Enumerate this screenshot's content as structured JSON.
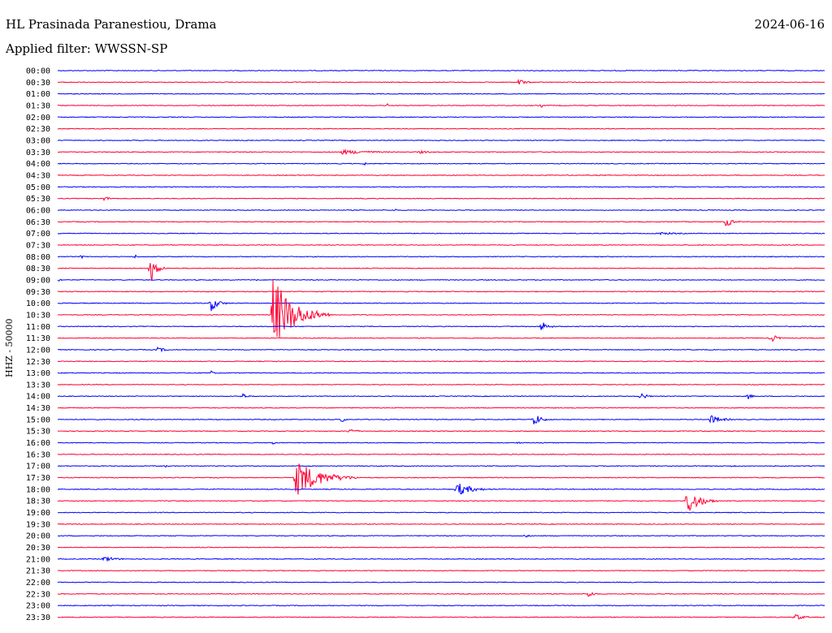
{
  "header": {
    "station": "HL Prasinada Paranestiou, Drama",
    "date": "2024-06-16",
    "filter": "Applied filter: WWSSN-SP"
  },
  "chart_data": {
    "type": "line",
    "title": "HL Prasinada Paranestiou, Drama",
    "ylabel": "HHZ - 50000",
    "colors": {
      "even": "#0000ff",
      "odd": "#ff0033"
    },
    "rows": [
      {
        "label": "00:00",
        "events": []
      },
      {
        "label": "00:30",
        "events": [
          [
            0.6,
            5,
            25
          ]
        ]
      },
      {
        "label": "01:00",
        "events": []
      },
      {
        "label": "01:30",
        "events": [
          [
            0.43,
            3,
            4
          ],
          [
            0.63,
            3,
            10
          ]
        ]
      },
      {
        "label": "02:00",
        "events": []
      },
      {
        "label": "02:30",
        "events": []
      },
      {
        "label": "03:00",
        "events": []
      },
      {
        "label": "03:30",
        "events": [
          [
            0.37,
            3,
            110
          ],
          [
            0.47,
            2,
            50
          ]
        ]
      },
      {
        "label": "04:00",
        "events": [
          [
            0.4,
            3,
            6
          ]
        ]
      },
      {
        "label": "04:30",
        "events": []
      },
      {
        "label": "05:00",
        "events": []
      },
      {
        "label": "05:30",
        "events": [
          [
            0.06,
            3,
            25
          ]
        ]
      },
      {
        "label": "06:00",
        "events": [
          [
            0.44,
            3,
            4
          ]
        ]
      },
      {
        "label": "06:30",
        "events": [
          [
            0.87,
            8,
            22
          ]
        ]
      },
      {
        "label": "07:00",
        "events": [
          [
            0.78,
            2,
            80
          ]
        ]
      },
      {
        "label": "07:30",
        "events": []
      },
      {
        "label": "08:00",
        "events": [
          [
            0.03,
            4,
            8
          ],
          [
            0.1,
            4,
            8
          ]
        ]
      },
      {
        "label": "08:30",
        "events": [
          [
            0.12,
            22,
            20
          ]
        ]
      },
      {
        "label": "09:00",
        "events": [
          [
            0.0,
            5,
            8
          ],
          [
            0.26,
            3,
            5
          ]
        ]
      },
      {
        "label": "09:30",
        "events": []
      },
      {
        "label": "10:00",
        "events": [
          [
            0.2,
            10,
            25
          ]
        ]
      },
      {
        "label": "10:30",
        "events": [
          [
            0.28,
            48,
            70
          ]
        ]
      },
      {
        "label": "11:00",
        "events": [
          [
            0.63,
            8,
            22
          ]
        ]
      },
      {
        "label": "11:30",
        "events": [
          [
            0.93,
            6,
            20
          ]
        ]
      },
      {
        "label": "12:00",
        "events": [
          [
            0.13,
            3,
            35
          ]
        ]
      },
      {
        "label": "12:30",
        "events": []
      },
      {
        "label": "13:00",
        "events": [
          [
            0.2,
            3,
            10
          ]
        ]
      },
      {
        "label": "13:30",
        "events": []
      },
      {
        "label": "14:00",
        "events": [
          [
            0.24,
            5,
            15
          ],
          [
            0.76,
            6,
            18
          ],
          [
            0.9,
            5,
            12
          ]
        ]
      },
      {
        "label": "14:30",
        "events": []
      },
      {
        "label": "15:00",
        "events": [
          [
            0.37,
            8,
            8
          ],
          [
            0.62,
            9,
            25
          ],
          [
            0.85,
            6,
            40
          ]
        ]
      },
      {
        "label": "15:30",
        "events": [
          [
            0.38,
            4,
            25
          ]
        ]
      },
      {
        "label": "16:00",
        "events": [
          [
            0.28,
            3,
            10
          ],
          [
            0.6,
            3,
            8
          ],
          [
            0.63,
            3,
            10
          ]
        ]
      },
      {
        "label": "16:30",
        "events": []
      },
      {
        "label": "17:00",
        "events": [
          [
            0.14,
            3,
            5
          ],
          [
            0.88,
            3,
            10
          ]
        ]
      },
      {
        "label": "17:30",
        "events": [
          [
            0.31,
            24,
            80
          ]
        ]
      },
      {
        "label": "18:00",
        "events": [
          [
            0.52,
            9,
            50
          ]
        ]
      },
      {
        "label": "18:30",
        "events": [
          [
            0.82,
            19,
            40
          ]
        ]
      },
      {
        "label": "19:00",
        "events": []
      },
      {
        "label": "19:30",
        "events": []
      },
      {
        "label": "20:00",
        "events": [
          [
            0.61,
            3,
            10
          ]
        ]
      },
      {
        "label": "20:30",
        "events": []
      },
      {
        "label": "21:00",
        "events": [
          [
            0.06,
            4,
            40
          ]
        ]
      },
      {
        "label": "21:30",
        "events": []
      },
      {
        "label": "22:00",
        "events": []
      },
      {
        "label": "22:30",
        "events": [
          [
            0.69,
            6,
            20
          ]
        ]
      },
      {
        "label": "23:00",
        "events": []
      },
      {
        "label": "23:30",
        "events": [
          [
            0.96,
            5,
            30
          ]
        ]
      }
    ]
  }
}
